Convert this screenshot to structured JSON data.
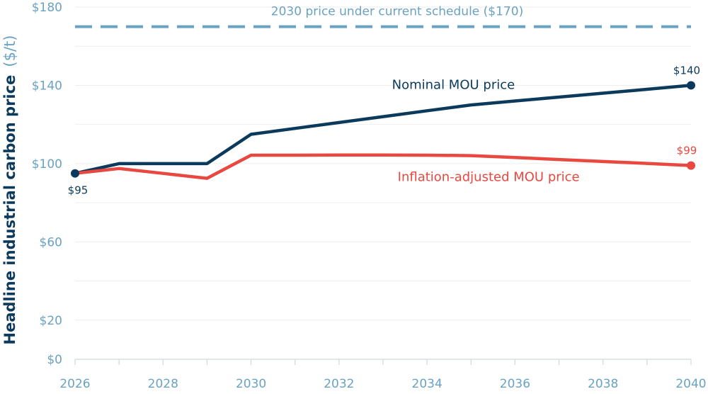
{
  "chart_data": {
    "type": "line",
    "ylabel": "Headline industrial carbon price",
    "yunit": "($/t)",
    "xlim": [
      2026,
      2040
    ],
    "ylim": [
      0,
      180
    ],
    "x_ticks": [
      "2026",
      "2028",
      "2030",
      "2032",
      "2034",
      "2036",
      "2038",
      "2040"
    ],
    "y_ticks": [
      {
        "value": 0,
        "label": "$0"
      },
      {
        "value": 20,
        "label": "$20"
      },
      {
        "value": 60,
        "label": "$60"
      },
      {
        "value": 100,
        "label": "$100"
      },
      {
        "value": 140,
        "label": "$140"
      },
      {
        "value": 180,
        "label": "$180"
      }
    ],
    "grid": true,
    "reference_line": {
      "value": 170,
      "label": "2030 price under current schedule ($170)",
      "color": "#6aa3c2",
      "style": "dashed"
    },
    "series": [
      {
        "name": "Nominal MOU price",
        "color": "#0b3a5c",
        "x": [
          2026,
          2027,
          2028,
          2029,
          2030,
          2031,
          2032,
          2033,
          2034,
          2035,
          2036,
          2037,
          2038,
          2039,
          2040
        ],
        "values": [
          95,
          100,
          100,
          100,
          115,
          118,
          121,
          124,
          127,
          130,
          132,
          134,
          136,
          138,
          140
        ]
      },
      {
        "name": "Inflation-adjusted MOU price",
        "color": "#e8483f",
        "x": [
          2026,
          2027,
          2028,
          2029,
          2030,
          2031,
          2032,
          2033,
          2034,
          2035,
          2036,
          2037,
          2038,
          2039,
          2040
        ],
        "values": [
          95,
          97.5,
          95,
          92.5,
          104.3,
          104.3,
          104.4,
          104.4,
          104.3,
          104.1,
          103.1,
          102.1,
          101.1,
          100.1,
          99
        ]
      }
    ],
    "point_labels": [
      {
        "series": 0,
        "index": 0,
        "label": "$95"
      },
      {
        "series": 0,
        "index": 14,
        "label": "$140"
      },
      {
        "series": 1,
        "index": 14,
        "label": "$99"
      }
    ]
  }
}
